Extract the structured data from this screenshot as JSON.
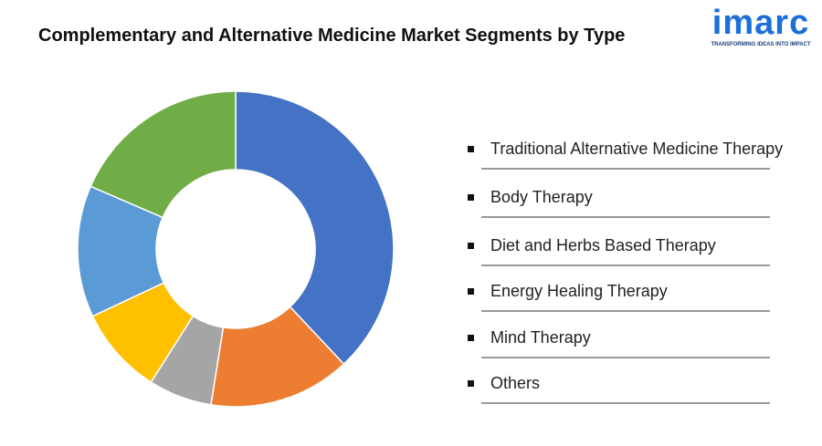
{
  "chart_data": {
    "type": "pie",
    "donut": true,
    "title": "Complementary and Alternative Medicine Market Segments by Type",
    "categories": [
      "Traditional Alternative Medicine Therapy",
      "Body Therapy",
      "Diet and Herbs Based Therapy",
      "Energy Healing Therapy",
      "Mind Therapy",
      "Others"
    ],
    "values": [
      38,
      14.5,
      6.5,
      9,
      13.5,
      18.5
    ],
    "colors": [
      "#4472c4",
      "#ed7d31",
      "#a5a5a5",
      "#ffc000",
      "#5b9bd5",
      "#70ad47"
    ],
    "logo": {
      "name": "imarc",
      "tagline": "TRANSFORMING IDEAS INTO IMPACT"
    }
  }
}
